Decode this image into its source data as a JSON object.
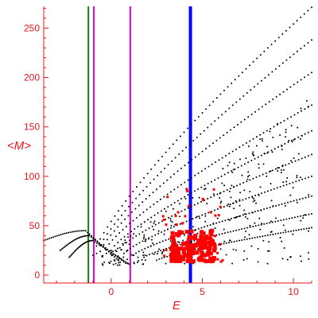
{
  "colors": {
    "axis": "#e8141e",
    "tick_label": "#e8141e",
    "black_points": "#000000",
    "red_points": "#ff0000",
    "green_line": "#1a7a1a",
    "magenta_line": "#e000e0",
    "blue_line": "#0000ff"
  },
  "chart_data": {
    "type": "scatter",
    "title": "",
    "xlabel": "E",
    "ylabel": "<M>",
    "xlim": [
      -3.7,
      11
    ],
    "ylim": [
      -8,
      272
    ],
    "x_ticks": [
      0,
      5,
      10
    ],
    "y_ticks": [
      0,
      50,
      100,
      150,
      200,
      250
    ],
    "grid": false,
    "vertical_lines": [
      {
        "x": -1.25,
        "color": "green"
      },
      {
        "x": -0.95,
        "color": "magenta"
      },
      {
        "x": 1.05,
        "color": "magenta"
      },
      {
        "x": 4.35,
        "color": "blue"
      }
    ],
    "black_bands": [
      {
        "x0": -1.0,
        "y0": 20,
        "x1": 11.0,
        "y1": 271
      },
      {
        "x0": -0.8,
        "y0": 22,
        "x1": 11.0,
        "y1": 238
      },
      {
        "x0": -0.6,
        "y0": 24,
        "x1": 11.0,
        "y1": 205
      },
      {
        "x0": -0.3,
        "y0": 26,
        "x1": 11.0,
        "y1": 172
      },
      {
        "x0": 0.0,
        "y0": 25,
        "x1": 11.0,
        "y1": 146
      },
      {
        "x0": 0.3,
        "y0": 24,
        "x1": 11.0,
        "y1": 122
      },
      {
        "x0": 0.7,
        "y0": 22,
        "x1": 11.0,
        "y1": 100
      },
      {
        "x0": 1.2,
        "y0": 20,
        "x1": 11.0,
        "y1": 80
      },
      {
        "x0": 1.8,
        "y0": 18,
        "x1": 11.0,
        "y1": 62
      },
      {
        "x0": 2.5,
        "y0": 15,
        "x1": 11.0,
        "y1": 48
      }
    ],
    "black_low_curves": [
      {
        "x0": -3.7,
        "y0": 35,
        "xpeak": -1.4,
        "ypeak": 45,
        "x1": 0.5,
        "y1": 13
      },
      {
        "x0": -2.8,
        "y0": 25,
        "xpeak": -1.2,
        "ypeak": 40,
        "x1": 0.8,
        "y1": 12
      },
      {
        "x0": -2.3,
        "y0": 18,
        "xpeak": -1.0,
        "ypeak": 35,
        "x1": 1.0,
        "y1": 11
      }
    ],
    "red_cluster": {
      "x_range": [
        2.6,
        6.3
      ],
      "y_range": [
        12,
        90
      ],
      "core_x": [
        3.3,
        5.7
      ],
      "core_y": [
        14,
        45
      ]
    }
  }
}
